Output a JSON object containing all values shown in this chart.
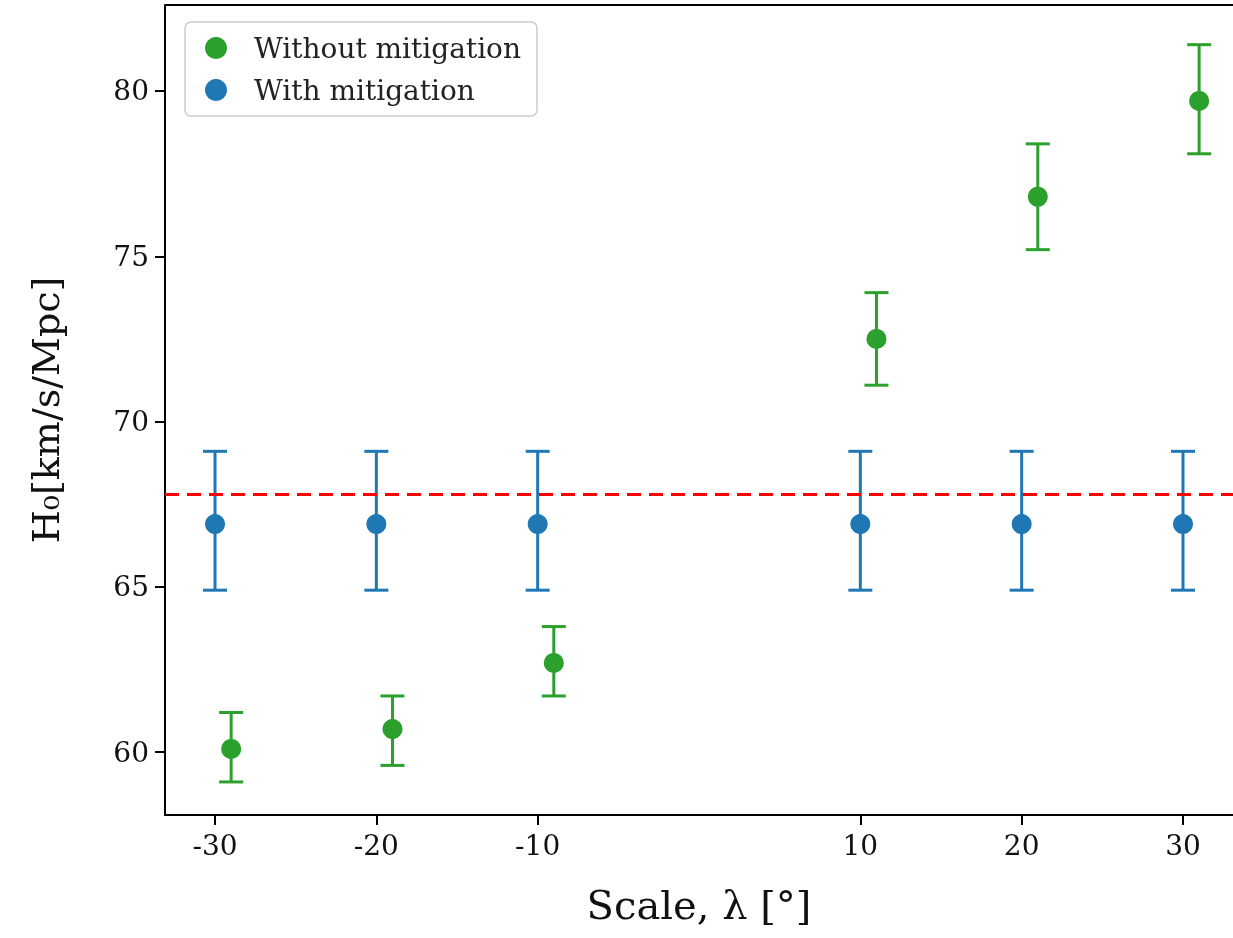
{
  "chart_data": {
    "type": "scatter",
    "xlabel": "Scale, λ [°]",
    "ylabel": "H₀[km/s/Mpc]",
    "xlim": [
      -33.1,
      33.1
    ],
    "xticks": [
      -30,
      -20,
      -10,
      10,
      20,
      30
    ],
    "ylim": [
      58.1,
      82.6
    ],
    "yticks": [
      60,
      65,
      70,
      75,
      80
    ],
    "grid": false,
    "legend": "top left",
    "marker": "circle",
    "series": [
      {
        "name": "Without mitigation",
        "color": "#2ca02c",
        "x": [
          -29,
          -19,
          -9,
          11,
          21,
          31
        ],
        "values": [
          60.1,
          60.7,
          62.7,
          72.5,
          76.8,
          79.7
        ],
        "errors": [
          [
            59.1,
            61.2
          ],
          [
            59.6,
            61.7
          ],
          [
            61.7,
            63.8
          ],
          [
            71.1,
            73.9
          ],
          [
            75.2,
            78.4
          ],
          [
            78.1,
            81.4
          ]
        ]
      },
      {
        "name": "With mitigation",
        "color": "#1f77b4",
        "x": [
          -30,
          -20,
          -10,
          10,
          20,
          30
        ],
        "values": [
          66.9,
          66.9,
          66.9,
          66.9,
          66.9,
          66.9
        ],
        "errors": [
          [
            64.9,
            69.1
          ],
          [
            64.9,
            69.1
          ],
          [
            64.9,
            69.1
          ],
          [
            64.9,
            69.1
          ],
          [
            64.9,
            69.1
          ],
          [
            64.9,
            69.1
          ]
        ]
      }
    ],
    "ref_lines": [
      {
        "axis": "y",
        "value": 67.8,
        "color": "#ff0000",
        "line_style": "dashed"
      }
    ]
  }
}
